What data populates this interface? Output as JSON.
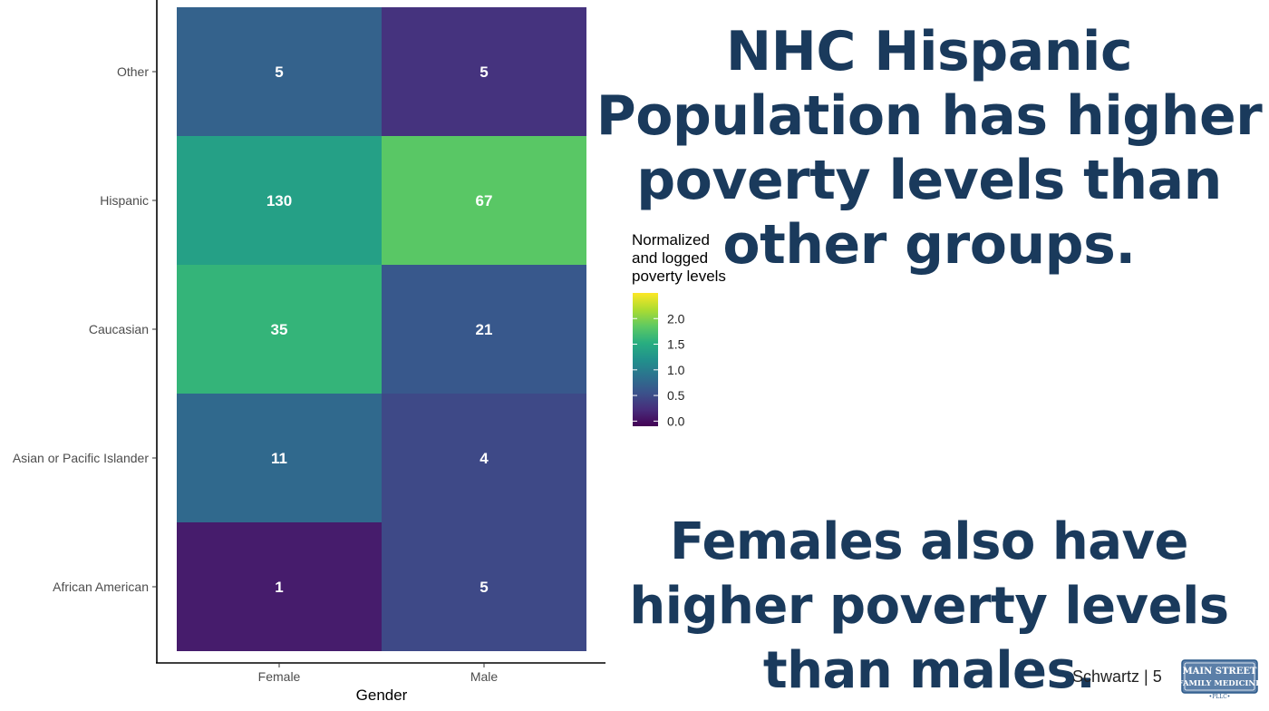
{
  "chart_data": {
    "type": "heatmap",
    "x_categories": [
      "Female",
      "Male"
    ],
    "y_categories": [
      "Other",
      "Hispanic",
      "Caucasian",
      "Asian or Pacific Islander",
      "African American"
    ],
    "cells": [
      {
        "x": "Female",
        "y": "Other",
        "label": "5",
        "fill": 0.71
      },
      {
        "x": "Male",
        "y": "Other",
        "label": "5",
        "fill": 0.28
      },
      {
        "x": "Female",
        "y": "Hispanic",
        "label": "130",
        "fill": 1.37
      },
      {
        "x": "Male",
        "y": "Hispanic",
        "label": "67",
        "fill": 1.82
      },
      {
        "x": "Female",
        "y": "Caucasian",
        "label": "35",
        "fill": 1.6
      },
      {
        "x": "Male",
        "y": "Caucasian",
        "label": "21",
        "fill": 0.61
      },
      {
        "x": "Female",
        "y": "Asian or Pacific Islander",
        "label": "11",
        "fill": 0.78
      },
      {
        "x": "Male",
        "y": "Asian or Pacific Islander",
        "label": "4",
        "fill": 0.47
      },
      {
        "x": "Female",
        "y": "African American",
        "label": "1",
        "fill": 0.1
      },
      {
        "x": "Male",
        "y": "African American",
        "label": "5",
        "fill": 0.47
      }
    ],
    "xlabel": "Gender",
    "ylabel": "",
    "legend": {
      "title": "Normalized\nand logged\npoverty levels",
      "ticks": [
        "0.0",
        "0.5",
        "1.0",
        "1.5",
        "2.0"
      ],
      "tick_values": [
        0,
        0.5,
        1.0,
        1.5,
        2.0
      ],
      "range": [
        -0.1,
        2.5
      ],
      "colormap": "viridis",
      "placement": "right"
    }
  },
  "headline_1": "NHC Hispanic Population has higher poverty levels than other groups.",
  "headline_2": "Females also have higher poverty levels than males.",
  "footer": "Schwartz | 5",
  "logo": {
    "line1": "MAIN STREET",
    "line2": "FAMILY MEDICINE",
    "line3": "•PLLC•",
    "color": "#2c5a8a"
  }
}
